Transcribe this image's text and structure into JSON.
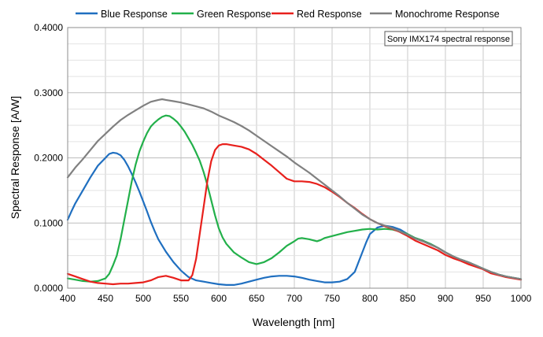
{
  "chart_data": {
    "type": "line",
    "xlabel": "Wavelength [nm]",
    "ylabel": "Spectral Response [A/W]",
    "xlim": [
      400,
      1000
    ],
    "ylim": [
      0,
      0.4
    ],
    "x_ticks": [
      "400",
      "450",
      "500",
      "550",
      "600",
      "650",
      "700",
      "750",
      "800",
      "850",
      "900",
      "950",
      "1000"
    ],
    "y_ticks": [
      "0.0000",
      "0.1000",
      "0.2000",
      "0.3000",
      "0.4000"
    ],
    "grid": true,
    "legend_position": "top",
    "annotation": "Sony IMX174 spectral response",
    "series": [
      {
        "name": "Blue Response",
        "color": "#1f6fc0",
        "points": [
          [
            400,
            0.105
          ],
          [
            405,
            0.118
          ],
          [
            410,
            0.13
          ],
          [
            420,
            0.15
          ],
          [
            430,
            0.17
          ],
          [
            440,
            0.188
          ],
          [
            450,
            0.2
          ],
          [
            455,
            0.206
          ],
          [
            460,
            0.208
          ],
          [
            465,
            0.207
          ],
          [
            470,
            0.204
          ],
          [
            475,
            0.197
          ],
          [
            480,
            0.187
          ],
          [
            485,
            0.175
          ],
          [
            490,
            0.162
          ],
          [
            495,
            0.148
          ],
          [
            500,
            0.133
          ],
          [
            505,
            0.118
          ],
          [
            510,
            0.102
          ],
          [
            515,
            0.088
          ],
          [
            520,
            0.075
          ],
          [
            530,
            0.056
          ],
          [
            540,
            0.04
          ],
          [
            550,
            0.027
          ],
          [
            560,
            0.017
          ],
          [
            570,
            0.012
          ],
          [
            580,
            0.01
          ],
          [
            590,
            0.008
          ],
          [
            600,
            0.006
          ],
          [
            610,
            0.005
          ],
          [
            620,
            0.005
          ],
          [
            630,
            0.007
          ],
          [
            640,
            0.01
          ],
          [
            650,
            0.013
          ],
          [
            660,
            0.016
          ],
          [
            670,
            0.018
          ],
          [
            680,
            0.019
          ],
          [
            690,
            0.019
          ],
          [
            700,
            0.018
          ],
          [
            710,
            0.016
          ],
          [
            720,
            0.013
          ],
          [
            730,
            0.011
          ],
          [
            740,
            0.009
          ],
          [
            750,
            0.009
          ],
          [
            760,
            0.01
          ],
          [
            770,
            0.014
          ],
          [
            780,
            0.025
          ],
          [
            785,
            0.04
          ],
          [
            790,
            0.055
          ],
          [
            795,
            0.07
          ],
          [
            800,
            0.083
          ],
          [
            810,
            0.093
          ],
          [
            820,
            0.096
          ],
          [
            830,
            0.094
          ],
          [
            840,
            0.09
          ],
          [
            850,
            0.083
          ],
          [
            860,
            0.077
          ],
          [
            870,
            0.073
          ],
          [
            880,
            0.068
          ],
          [
            890,
            0.062
          ],
          [
            900,
            0.055
          ],
          [
            910,
            0.049
          ],
          [
            920,
            0.044
          ],
          [
            930,
            0.04
          ],
          [
            940,
            0.035
          ],
          [
            950,
            0.03
          ],
          [
            960,
            0.025
          ],
          [
            970,
            0.021
          ],
          [
            980,
            0.018
          ],
          [
            990,
            0.016
          ],
          [
            1000,
            0.014
          ]
        ]
      },
      {
        "name": "Green Response",
        "color": "#22b04a",
        "points": [
          [
            400,
            0.015
          ],
          [
            410,
            0.013
          ],
          [
            420,
            0.011
          ],
          [
            430,
            0.01
          ],
          [
            440,
            0.011
          ],
          [
            450,
            0.015
          ],
          [
            455,
            0.022
          ],
          [
            460,
            0.035
          ],
          [
            465,
            0.05
          ],
          [
            470,
            0.075
          ],
          [
            475,
            0.105
          ],
          [
            480,
            0.135
          ],
          [
            485,
            0.165
          ],
          [
            490,
            0.19
          ],
          [
            495,
            0.21
          ],
          [
            500,
            0.225
          ],
          [
            505,
            0.238
          ],
          [
            510,
            0.248
          ],
          [
            515,
            0.254
          ],
          [
            520,
            0.259
          ],
          [
            525,
            0.263
          ],
          [
            530,
            0.265
          ],
          [
            535,
            0.264
          ],
          [
            540,
            0.26
          ],
          [
            545,
            0.255
          ],
          [
            550,
            0.248
          ],
          [
            555,
            0.24
          ],
          [
            560,
            0.23
          ],
          [
            565,
            0.22
          ],
          [
            570,
            0.208
          ],
          [
            575,
            0.195
          ],
          [
            580,
            0.178
          ],
          [
            585,
            0.158
          ],
          [
            590,
            0.135
          ],
          [
            595,
            0.112
          ],
          [
            600,
            0.092
          ],
          [
            605,
            0.078
          ],
          [
            610,
            0.068
          ],
          [
            620,
            0.055
          ],
          [
            630,
            0.047
          ],
          [
            640,
            0.04
          ],
          [
            650,
            0.037
          ],
          [
            660,
            0.04
          ],
          [
            670,
            0.046
          ],
          [
            680,
            0.055
          ],
          [
            690,
            0.065
          ],
          [
            700,
            0.072
          ],
          [
            705,
            0.076
          ],
          [
            710,
            0.077
          ],
          [
            720,
            0.075
          ],
          [
            730,
            0.072
          ],
          [
            735,
            0.074
          ],
          [
            740,
            0.077
          ],
          [
            750,
            0.08
          ],
          [
            760,
            0.083
          ],
          [
            770,
            0.086
          ],
          [
            780,
            0.088
          ],
          [
            790,
            0.09
          ],
          [
            800,
            0.091
          ],
          [
            810,
            0.09
          ],
          [
            820,
            0.091
          ],
          [
            830,
            0.09
          ],
          [
            840,
            0.087
          ],
          [
            850,
            0.083
          ],
          [
            860,
            0.077
          ],
          [
            870,
            0.073
          ],
          [
            880,
            0.068
          ],
          [
            890,
            0.062
          ],
          [
            900,
            0.055
          ],
          [
            910,
            0.049
          ],
          [
            920,
            0.044
          ],
          [
            930,
            0.04
          ],
          [
            940,
            0.035
          ],
          [
            950,
            0.03
          ],
          [
            960,
            0.025
          ],
          [
            970,
            0.021
          ],
          [
            980,
            0.018
          ],
          [
            990,
            0.016
          ],
          [
            1000,
            0.014
          ]
        ]
      },
      {
        "name": "Red Response",
        "color": "#e8201c",
        "points": [
          [
            400,
            0.022
          ],
          [
            410,
            0.018
          ],
          [
            420,
            0.014
          ],
          [
            430,
            0.01
          ],
          [
            440,
            0.008
          ],
          [
            450,
            0.007
          ],
          [
            460,
            0.006
          ],
          [
            470,
            0.007
          ],
          [
            480,
            0.007
          ],
          [
            490,
            0.008
          ],
          [
            500,
            0.009
          ],
          [
            510,
            0.012
          ],
          [
            520,
            0.017
          ],
          [
            530,
            0.019
          ],
          [
            540,
            0.016
          ],
          [
            550,
            0.012
          ],
          [
            560,
            0.012
          ],
          [
            565,
            0.02
          ],
          [
            570,
            0.045
          ],
          [
            575,
            0.085
          ],
          [
            580,
            0.125
          ],
          [
            585,
            0.165
          ],
          [
            590,
            0.195
          ],
          [
            595,
            0.212
          ],
          [
            600,
            0.219
          ],
          [
            605,
            0.221
          ],
          [
            610,
            0.221
          ],
          [
            620,
            0.219
          ],
          [
            630,
            0.217
          ],
          [
            640,
            0.213
          ],
          [
            650,
            0.206
          ],
          [
            660,
            0.197
          ],
          [
            670,
            0.188
          ],
          [
            680,
            0.178
          ],
          [
            690,
            0.168
          ],
          [
            700,
            0.164
          ],
          [
            710,
            0.164
          ],
          [
            720,
            0.163
          ],
          [
            730,
            0.16
          ],
          [
            740,
            0.155
          ],
          [
            750,
            0.148
          ],
          [
            760,
            0.14
          ],
          [
            770,
            0.131
          ],
          [
            780,
            0.123
          ],
          [
            790,
            0.114
          ],
          [
            800,
            0.106
          ],
          [
            810,
            0.1
          ],
          [
            820,
            0.095
          ],
          [
            830,
            0.091
          ],
          [
            840,
            0.086
          ],
          [
            850,
            0.08
          ],
          [
            860,
            0.073
          ],
          [
            870,
            0.068
          ],
          [
            880,
            0.063
          ],
          [
            890,
            0.058
          ],
          [
            900,
            0.051
          ],
          [
            910,
            0.046
          ],
          [
            920,
            0.042
          ],
          [
            930,
            0.037
          ],
          [
            940,
            0.033
          ],
          [
            950,
            0.029
          ],
          [
            960,
            0.023
          ],
          [
            970,
            0.02
          ],
          [
            980,
            0.017
          ],
          [
            990,
            0.015
          ],
          [
            1000,
            0.013
          ]
        ]
      },
      {
        "name": "Monochrome Response",
        "color": "#808080",
        "points": [
          [
            400,
            0.17
          ],
          [
            410,
            0.185
          ],
          [
            420,
            0.198
          ],
          [
            430,
            0.212
          ],
          [
            440,
            0.226
          ],
          [
            450,
            0.237
          ],
          [
            460,
            0.248
          ],
          [
            470,
            0.258
          ],
          [
            480,
            0.266
          ],
          [
            490,
            0.273
          ],
          [
            500,
            0.28
          ],
          [
            510,
            0.286
          ],
          [
            520,
            0.289
          ],
          [
            525,
            0.29
          ],
          [
            530,
            0.289
          ],
          [
            540,
            0.287
          ],
          [
            550,
            0.285
          ],
          [
            560,
            0.282
          ],
          [
            570,
            0.279
          ],
          [
            580,
            0.276
          ],
          [
            590,
            0.271
          ],
          [
            600,
            0.265
          ],
          [
            610,
            0.26
          ],
          [
            620,
            0.255
          ],
          [
            630,
            0.249
          ],
          [
            640,
            0.242
          ],
          [
            650,
            0.234
          ],
          [
            660,
            0.226
          ],
          [
            670,
            0.218
          ],
          [
            680,
            0.21
          ],
          [
            690,
            0.202
          ],
          [
            700,
            0.193
          ],
          [
            710,
            0.185
          ],
          [
            720,
            0.177
          ],
          [
            730,
            0.168
          ],
          [
            740,
            0.159
          ],
          [
            750,
            0.15
          ],
          [
            760,
            0.141
          ],
          [
            770,
            0.131
          ],
          [
            780,
            0.122
          ],
          [
            790,
            0.113
          ],
          [
            800,
            0.106
          ],
          [
            810,
            0.1
          ],
          [
            820,
            0.096
          ],
          [
            830,
            0.092
          ],
          [
            840,
            0.087
          ],
          [
            850,
            0.082
          ],
          [
            860,
            0.076
          ],
          [
            870,
            0.072
          ],
          [
            880,
            0.067
          ],
          [
            890,
            0.062
          ],
          [
            900,
            0.055
          ],
          [
            910,
            0.049
          ],
          [
            920,
            0.044
          ],
          [
            930,
            0.04
          ],
          [
            940,
            0.035
          ],
          [
            950,
            0.03
          ],
          [
            960,
            0.025
          ],
          [
            970,
            0.021
          ],
          [
            980,
            0.018
          ],
          [
            990,
            0.016
          ],
          [
            1000,
            0.014
          ]
        ]
      }
    ]
  }
}
